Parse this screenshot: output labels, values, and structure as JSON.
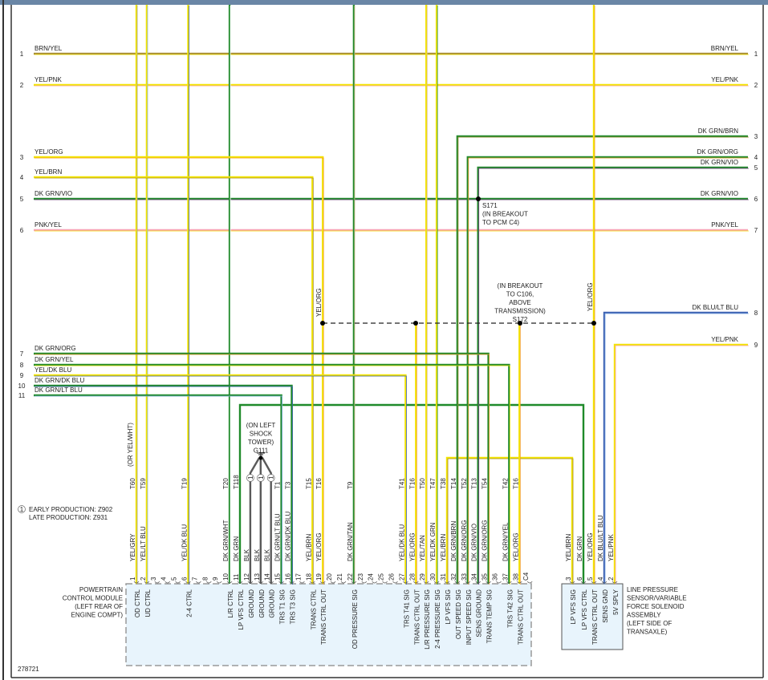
{
  "figure_id": "278721",
  "wire_colors": {
    "YEL": "#f3e500",
    "BRN": "#a58a35",
    "PNK": "#f7a1b5",
    "ORG": "#f29a2e",
    "GRY": "#a0a0a0",
    "LT BLU": "#8ab4e8",
    "DK BLU": "#3a5fb0",
    "DK GRN": "#1f8a2a",
    "WHT": "#ffffff",
    "TAN": "#d7b98c",
    "VIO": "#7a3f86",
    "BLK": "#5a5a5a"
  },
  "left_wires": [
    {
      "num": "1",
      "label": "BRN/YEL"
    },
    {
      "num": "2",
      "label": "YEL/PNK"
    },
    {
      "num": "3",
      "label": "YEL/ORG"
    },
    {
      "num": "4",
      "label": "YEL/BRN"
    },
    {
      "num": "5",
      "label": "DK GRN/VIO"
    },
    {
      "num": "6",
      "label": "PNK/YEL"
    },
    {
      "num": "7",
      "label": "DK GRN/ORG"
    },
    {
      "num": "8",
      "label": "DK GRN/YEL"
    },
    {
      "num": "9",
      "label": "YEL/DK BLU"
    },
    {
      "num": "10",
      "label": "DK GRN/DK BLU"
    },
    {
      "num": "11",
      "label": "DK GRN/LT BLU"
    }
  ],
  "right_wires": [
    {
      "num": "1",
      "label": "BRN/YEL"
    },
    {
      "num": "2",
      "label": "YEL/PNK"
    },
    {
      "num": "3",
      "label": "DK GRN/BRN"
    },
    {
      "num": "4",
      "label": "DK GRN/ORG"
    },
    {
      "num": "5",
      "label": "DK GRN/VIO"
    },
    {
      "num": "6",
      "label": "DK GRN/VIO"
    },
    {
      "num": "7",
      "label": "PNK/YEL"
    },
    {
      "num": "8",
      "label": "DK BLU/LT BLU"
    },
    {
      "num": "9",
      "label": "YEL/PNK"
    }
  ],
  "pcm": {
    "name_lines": [
      "POWERTRAIN",
      "CONTROL MODULE",
      "(LEFT REAR OF",
      "ENGINE COMPT)"
    ],
    "pins": [
      {
        "pin": "1",
        "circuit": "T60",
        "color": "YEL/GRY",
        "func": "OD CTRL"
      },
      {
        "pin": "2",
        "circuit": "T59",
        "color": "YEL/LT BLU",
        "func": "UD CTRL"
      },
      {
        "pin": "3"
      },
      {
        "pin": "4"
      },
      {
        "pin": "5"
      },
      {
        "pin": "6",
        "circuit": "T19",
        "color": "YEL/DK BLU",
        "func": "2-4 CTRL"
      },
      {
        "pin": "7"
      },
      {
        "pin": "8"
      },
      {
        "pin": "9"
      },
      {
        "pin": "10",
        "circuit": "T20",
        "color": "DK GRN/WHT",
        "func": "L/R CTRL"
      },
      {
        "pin": "11",
        "circuit": "T118",
        "color": "DK GRN",
        "func": "LP VFS CTRL"
      },
      {
        "pin": "12",
        "circuit": "1",
        "color": "BLK",
        "func": "GROUND"
      },
      {
        "pin": "13",
        "circuit": "1",
        "color": "BLK",
        "func": "GROUND"
      },
      {
        "pin": "14",
        "circuit": "1",
        "color": "BLK",
        "func": "GROUND"
      },
      {
        "pin": "15",
        "circuit": "T1",
        "color": "DK GRN/LT BLU",
        "func": "TRS T1 SIG"
      },
      {
        "pin": "16",
        "circuit": "T3",
        "color": "DK GRN/DK BLU",
        "func": "TRS T3 SIG"
      },
      {
        "pin": "17"
      },
      {
        "pin": "18",
        "circuit": "T15",
        "color": "YEL/BRN",
        "func": "TRANS CTRL"
      },
      {
        "pin": "19",
        "circuit": "T16",
        "color": "YEL/ORG",
        "func": "TRANS CTRL OUT"
      },
      {
        "pin": "20"
      },
      {
        "pin": "21"
      },
      {
        "pin": "22",
        "circuit": "T9",
        "color": "DK GRN/TAN",
        "func": "OD PRESSURE SIG"
      },
      {
        "pin": "23"
      },
      {
        "pin": "24"
      },
      {
        "pin": "25"
      },
      {
        "pin": "26"
      },
      {
        "pin": "27",
        "circuit": "T41",
        "color": "YEL/DK BLU",
        "func": "TRS T41 SIG"
      },
      {
        "pin": "28",
        "circuit": "T16",
        "color": "YEL/ORG",
        "func": "TRANS CTRL OUT"
      },
      {
        "pin": "29",
        "circuit": "T50",
        "color": "YEL/TAN",
        "func": "L/R PRESSURE SIG"
      },
      {
        "pin": "30",
        "circuit": "T47",
        "color": "YEL/DK GRN",
        "func": "2-4 PRESSURE SIG"
      },
      {
        "pin": "31",
        "circuit": "T38",
        "color": "YEL/BRN",
        "func": "LP VFS SIG"
      },
      {
        "pin": "32",
        "circuit": "T14",
        "color": "DK GRN/BRN",
        "func": "OUT SPEED SIG"
      },
      {
        "pin": "33",
        "circuit": "T52",
        "color": "DK GRN/ORG",
        "func": "INPUT SPEED SIG"
      },
      {
        "pin": "34",
        "circuit": "T13",
        "color": "DK GRN/VIO",
        "func": "SENS GROUND"
      },
      {
        "pin": "35",
        "circuit": "T54",
        "color": "DK GRN/ORG",
        "func": "TRANS TEMP SIG"
      },
      {
        "pin": "36"
      },
      {
        "pin": "37",
        "circuit": "T42",
        "color": "DK GRN/YEL",
        "func": "TRS T42 SIG"
      },
      {
        "pin": "38",
        "circuit": "T16",
        "color": "YEL/ORG",
        "func": "TRANS CTRL OUT"
      },
      {
        "pin": "C4"
      }
    ]
  },
  "sensor": {
    "name_lines": [
      "LINE PRESSURE",
      "SENSOR/VARIABLE",
      "FORCE SOLENOID",
      "ASSEMBLY",
      "(LEFT SIDE OF",
      "TRANSAXLE)"
    ],
    "pins": [
      {
        "pin": "3",
        "color": "YEL/BRN",
        "func": "LP VFS SIG"
      },
      {
        "pin": "6",
        "color": "DK GRN",
        "func": "LP VFS CTRL"
      },
      {
        "pin": "5",
        "color": "YEL/ORG",
        "func": "TRANS CTRL OUT"
      },
      {
        "pin": "4",
        "color": "DK BLU/LT BLU",
        "func": "SENS GND"
      },
      {
        "pin": "2",
        "color": "YEL/PNK",
        "func": "5V SPLY"
      }
    ]
  },
  "splices": {
    "s171": [
      "S171",
      "(IN BREAKOUT",
      "TO PCM C4)"
    ],
    "s172": [
      "(IN BREAKOUT",
      "TO C106,",
      "ABOVE",
      "TRANSMISSION)",
      "S172"
    ]
  },
  "ground": [
    "(ON LEFT",
    "SHOCK",
    "TOWER)",
    "G111"
  ],
  "alt_color_note": "(OR YEL/WHT)",
  "splice_wire_labels": [
    "YEL/ORG",
    "YEL/ORG"
  ],
  "note": {
    "marker": "1",
    "lines": [
      "EARLY PRODUCTION: Z902",
      "LATE PRODUCTION: Z931"
    ]
  }
}
